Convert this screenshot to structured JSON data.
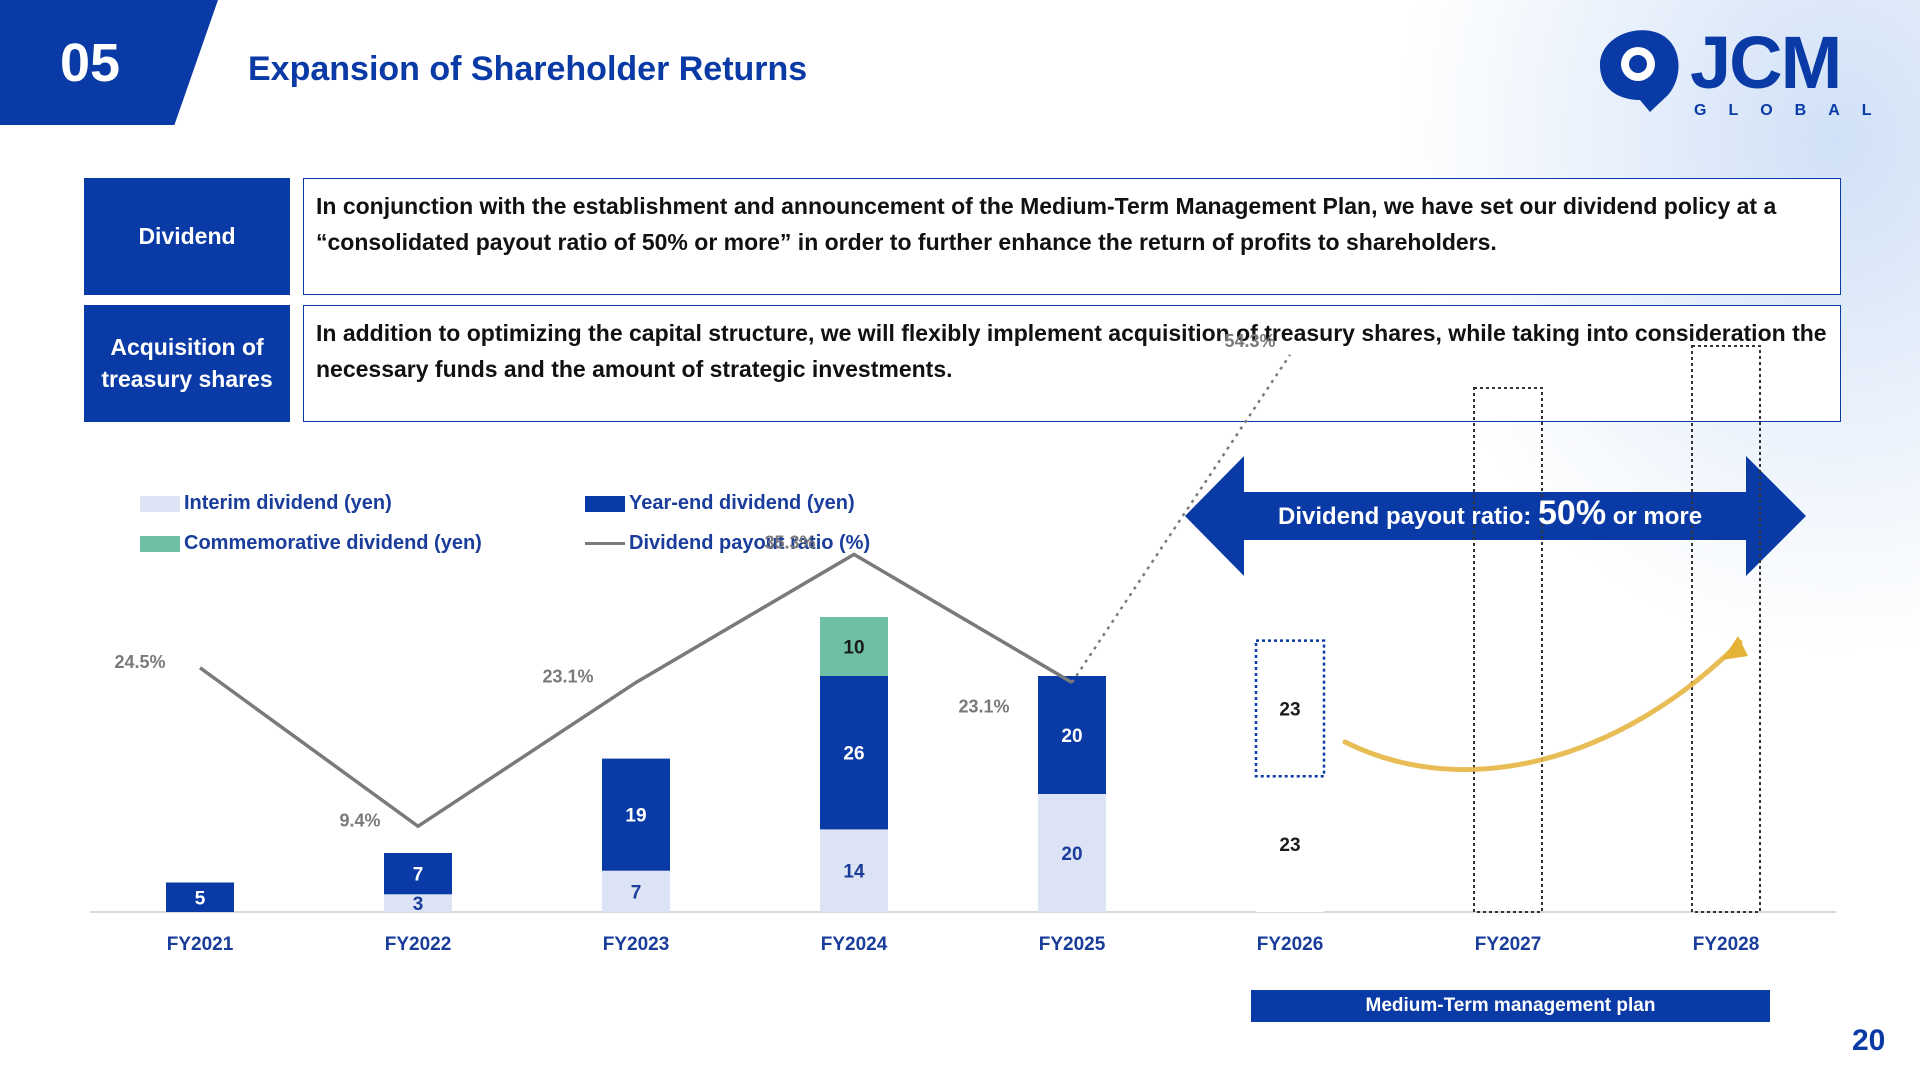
{
  "header": {
    "section_number": "05",
    "title": "Expansion of Shareholder Returns",
    "logo_text": "JCM",
    "logo_subtext": "GLOBAL"
  },
  "policies": [
    {
      "label": "Dividend",
      "text": "In conjunction with the establishment and announcement of the Medium-Term Management Plan, we have set our dividend policy at a “consolidated payout ratio of 50% or more” in order to further enhance the return of profits to shareholders."
    },
    {
      "label": "Acquisition of treasury shares",
      "text": "In addition to optimizing the capital structure, we will flexibly implement acquisition of treasury shares, while taking into consideration the necessary funds and the amount of strategic investments."
    }
  ],
  "target_banner": {
    "prefix": "Dividend payout ratio: ",
    "value": "50%",
    "suffix": " or more"
  },
  "plan_label": "Medium-Term management plan",
  "page_number": "20",
  "colors": {
    "brand_blue": "#0a3aa6",
    "interim": "#dce3f4",
    "year_end": "#0a3aa6",
    "commemorative": "#6fbfa6",
    "ratio_line": "#7a7a7a",
    "forecast_arrow": "#e5b238"
  },
  "chart_data": {
    "type": "bar",
    "stacked": true,
    "categories": [
      "FY2021",
      "FY2022",
      "FY2023",
      "FY2024",
      "FY2025",
      "FY2026",
      "FY2027",
      "FY2028"
    ],
    "series": [
      {
        "name": "Interim dividend (yen)",
        "values": [
          null,
          3,
          7,
          14,
          20,
          23,
          null,
          null
        ]
      },
      {
        "name": "Year-end dividend (yen)",
        "values": [
          5,
          7,
          19,
          26,
          20,
          23,
          null,
          null
        ]
      },
      {
        "name": "Commemorative dividend (yen)",
        "values": [
          null,
          null,
          null,
          10,
          null,
          null,
          null,
          null
        ]
      }
    ],
    "line_series": {
      "name": "Dividend payout ratio (%)",
      "values": [
        24.5,
        9.4,
        23.1,
        35.3,
        23.1,
        54.3,
        null,
        null
      ],
      "labels": [
        "24.5%",
        "9.4%",
        "23.1%",
        "35.3%",
        "23.1%",
        "54.3%",
        "",
        ""
      ],
      "forecast_from_index": 4
    },
    "forecast_categories": [
      "FY2026",
      "FY2027",
      "FY2028"
    ],
    "legend_position": "top-left",
    "grid": false
  }
}
